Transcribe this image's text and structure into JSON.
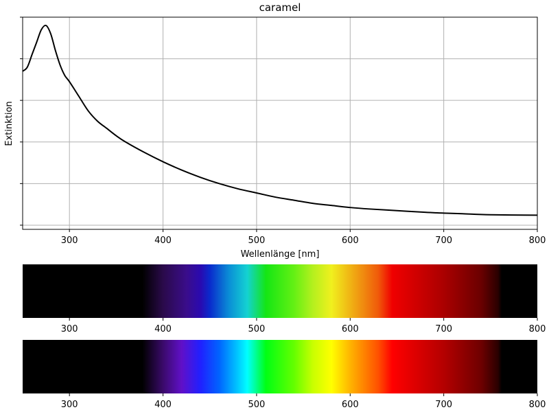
{
  "chart_data": [
    {
      "type": "line",
      "title": "caramel",
      "xlabel": "Wellenlänge [nm]",
      "ylabel": "Extinktion",
      "xlim": [
        250,
        800
      ],
      "ylim": [
        -0.02,
        1.0
      ],
      "grid": true,
      "x_ticks": [
        300,
        400,
        500,
        600,
        700,
        800
      ],
      "y_ticks": [
        0.0,
        0.2,
        0.4,
        0.6,
        0.8,
        1.0
      ],
      "y_tick_labels_shown": false,
      "line_color": "#000000",
      "series": [
        {
          "x": [
            250,
            255,
            260,
            265,
            270,
            275,
            280,
            285,
            290,
            295,
            300,
            310,
            320,
            330,
            340,
            350,
            360,
            380,
            400,
            420,
            440,
            460,
            480,
            500,
            520,
            540,
            560,
            580,
            600,
            620,
            650,
            680,
            700,
            720,
            750,
            800
          ],
          "y": [
            0.74,
            0.76,
            0.82,
            0.88,
            0.94,
            0.96,
            0.92,
            0.84,
            0.77,
            0.72,
            0.69,
            0.62,
            0.55,
            0.5,
            0.465,
            0.43,
            0.4,
            0.35,
            0.305,
            0.265,
            0.23,
            0.2,
            0.175,
            0.155,
            0.135,
            0.12,
            0.105,
            0.095,
            0.085,
            0.078,
            0.07,
            0.062,
            0.058,
            0.055,
            0.05,
            0.048
          ]
        }
      ]
    },
    {
      "type": "heatmap",
      "name": "spectrum-filtered",
      "xlim": [
        250,
        800
      ],
      "x_ticks": [
        300,
        400,
        500,
        600,
        700,
        800
      ],
      "visible_range": [
        380,
        760
      ],
      "stops": [
        {
          "nm": 250,
          "color": "#000000"
        },
        {
          "nm": 378,
          "color": "#000000"
        },
        {
          "nm": 400,
          "color": "#2a0a4a"
        },
        {
          "nm": 425,
          "color": "#3a0d8a"
        },
        {
          "nm": 440,
          "color": "#2a0ab0"
        },
        {
          "nm": 450,
          "color": "#0a2acc"
        },
        {
          "nm": 470,
          "color": "#0a8cd6"
        },
        {
          "nm": 490,
          "color": "#14d2d2"
        },
        {
          "nm": 510,
          "color": "#14e614"
        },
        {
          "nm": 540,
          "color": "#64f014"
        },
        {
          "nm": 560,
          "color": "#b4f01e"
        },
        {
          "nm": 580,
          "color": "#f0f01e"
        },
        {
          "nm": 600,
          "color": "#f0b414"
        },
        {
          "nm": 630,
          "color": "#f05a0a"
        },
        {
          "nm": 645,
          "color": "#f00000"
        },
        {
          "nm": 700,
          "color": "#aa0000"
        },
        {
          "nm": 740,
          "color": "#6a0000"
        },
        {
          "nm": 758,
          "color": "#2a0000"
        },
        {
          "nm": 762,
          "color": "#000000"
        },
        {
          "nm": 800,
          "color": "#000000"
        }
      ]
    },
    {
      "type": "heatmap",
      "name": "spectrum-full",
      "xlim": [
        250,
        800
      ],
      "x_ticks": [
        300,
        400,
        500,
        600,
        700,
        800
      ],
      "visible_range": [
        380,
        760
      ],
      "stops": [
        {
          "nm": 250,
          "color": "#000000"
        },
        {
          "nm": 378,
          "color": "#000000"
        },
        {
          "nm": 400,
          "color": "#3a0a6a"
        },
        {
          "nm": 420,
          "color": "#6010c8"
        },
        {
          "nm": 440,
          "color": "#2020ff"
        },
        {
          "nm": 460,
          "color": "#0064ff"
        },
        {
          "nm": 480,
          "color": "#00c8ff"
        },
        {
          "nm": 490,
          "color": "#00ffff"
        },
        {
          "nm": 510,
          "color": "#00ff14"
        },
        {
          "nm": 540,
          "color": "#64ff00"
        },
        {
          "nm": 560,
          "color": "#c8ff00"
        },
        {
          "nm": 580,
          "color": "#ffff00"
        },
        {
          "nm": 600,
          "color": "#ffb400"
        },
        {
          "nm": 630,
          "color": "#ff5000"
        },
        {
          "nm": 645,
          "color": "#ff0000"
        },
        {
          "nm": 700,
          "color": "#b40000"
        },
        {
          "nm": 740,
          "color": "#6e0000"
        },
        {
          "nm": 758,
          "color": "#2a0000"
        },
        {
          "nm": 762,
          "color": "#000000"
        },
        {
          "nm": 800,
          "color": "#000000"
        }
      ]
    }
  ]
}
